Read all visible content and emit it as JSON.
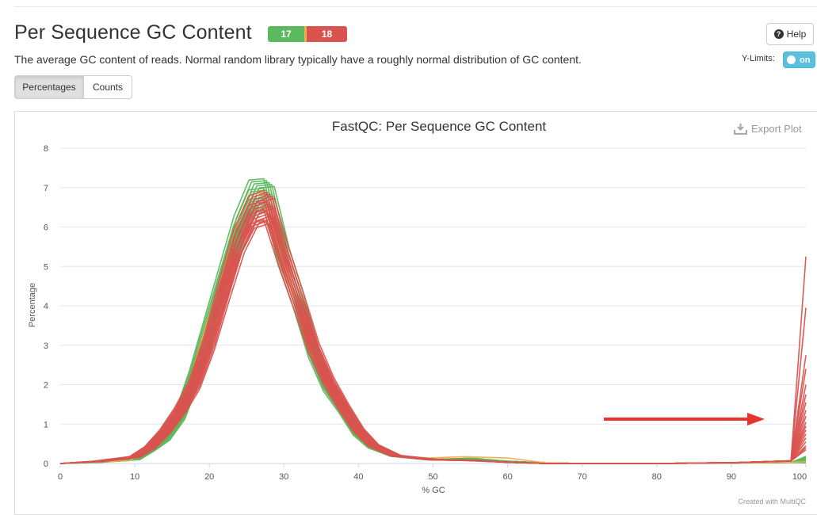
{
  "header": {
    "title": "Per Sequence GC Content",
    "status_pass": "17",
    "status_fail": "18",
    "help_label": "Help",
    "description": "The average GC content of reads. Normal random library typically have a roughly normal distribution of GC content.",
    "ylimits_label": "Y-Limits:",
    "toggle_label": "on"
  },
  "tabs": {
    "percentages": "Percentages",
    "counts": "Counts"
  },
  "export_label": "Export Plot",
  "credit": "Created with MultiQC",
  "colors": {
    "pass": "#5cb85c",
    "warn": "#f0ad4e",
    "fail": "#d9534f",
    "arrow": "#e8322c"
  },
  "chart_data": {
    "type": "line",
    "title": "FastQC: Per Sequence GC Content",
    "xlabel": "% GC",
    "ylabel": "Percentage",
    "xlim": [
      0,
      100
    ],
    "ylim": [
      0,
      8
    ],
    "xticks": [
      0,
      10,
      20,
      30,
      40,
      50,
      60,
      70,
      80,
      90,
      100
    ],
    "yticks": [
      0,
      1,
      2,
      3,
      4,
      5,
      6,
      7,
      8
    ],
    "grid": true,
    "legend": "none",
    "series_groups": [
      {
        "status": "pass",
        "color": "#5cb85c",
        "x": [
          0,
          5,
          10,
          12,
          14,
          16,
          18,
          20,
          22,
          24,
          26,
          28,
          30,
          32,
          34,
          36,
          38,
          40,
          42,
          45,
          50,
          55,
          60,
          65,
          70,
          80,
          90,
          98,
          100
        ],
        "peaks": [
          7.3,
          7.25,
          7.2,
          7.15,
          7.1,
          7.05,
          7.0,
          6.95,
          6.9,
          6.85,
          6.8,
          6.75,
          6.7,
          6.65,
          6.6,
          6.55,
          6.5
        ],
        "shape": [
          0.0,
          0.005,
          0.015,
          0.05,
          0.09,
          0.17,
          0.32,
          0.5,
          0.68,
          0.86,
          0.985,
          0.99,
          0.77,
          0.6,
          0.41,
          0.28,
          0.2,
          0.11,
          0.06,
          0.028,
          0.014,
          0.018,
          0.008,
          0.002,
          0.0,
          0.0,
          0.002,
          0.004,
          0.008
        ],
        "end_values": [
          0.02,
          0.03,
          0.04,
          0.05,
          0.06,
          0.07,
          0.08,
          0.09,
          0.1,
          0.11,
          0.12,
          0.13,
          0.14,
          0.15,
          0.16,
          0.17,
          0.18
        ]
      },
      {
        "status": "warn",
        "color": "#f0ad4e",
        "x": [
          0,
          5,
          10,
          12,
          14,
          16,
          18,
          20,
          22,
          24,
          26,
          28,
          30,
          32,
          34,
          36,
          38,
          40,
          42,
          45,
          50,
          55,
          60,
          65,
          70,
          80,
          90,
          98,
          100
        ],
        "peaks": [
          6.95
        ],
        "shape": [
          0.0,
          0.005,
          0.01,
          0.04,
          0.08,
          0.16,
          0.3,
          0.48,
          0.66,
          0.85,
          0.98,
          0.99,
          0.78,
          0.62,
          0.43,
          0.3,
          0.21,
          0.12,
          0.07,
          0.03,
          0.02,
          0.025,
          0.02,
          0.003,
          0.0,
          0.0,
          0.002,
          0.004,
          0.01
        ],
        "end_values": [
          0.05
        ]
      },
      {
        "status": "fail",
        "color": "#d9534f",
        "x": [
          0,
          5,
          10,
          12,
          14,
          16,
          18,
          20,
          22,
          24,
          26,
          28,
          30,
          32,
          34,
          36,
          38,
          40,
          42,
          45,
          50,
          55,
          60,
          65,
          70,
          80,
          90,
          98,
          100
        ],
        "peaks": [
          7.0,
          6.95,
          6.9,
          6.85,
          6.8,
          6.75,
          6.7,
          6.65,
          6.6,
          6.55,
          6.5,
          6.45,
          6.4,
          6.35,
          6.3,
          6.25,
          6.2,
          6.15
        ],
        "shape": [
          0.0,
          0.008,
          0.025,
          0.06,
          0.12,
          0.2,
          0.3,
          0.46,
          0.66,
          0.85,
          0.97,
          0.99,
          0.8,
          0.63,
          0.45,
          0.32,
          0.22,
          0.13,
          0.07,
          0.03,
          0.015,
          0.012,
          0.005,
          0.0,
          0.0,
          0.0,
          0.003,
          0.01,
          0.0
        ],
        "end_values": [
          5.25,
          3.95,
          2.75,
          2.4,
          2.0,
          1.75,
          1.55,
          1.35,
          1.2,
          1.05,
          0.95,
          0.85,
          0.75,
          0.65,
          0.55,
          0.45,
          0.4,
          0.35
        ]
      }
    ]
  }
}
